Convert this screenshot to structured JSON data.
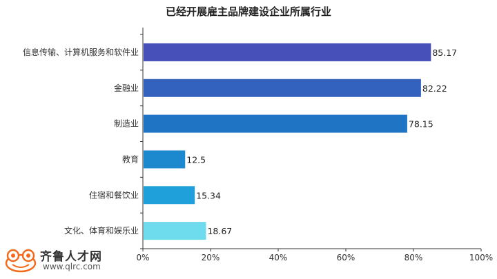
{
  "chart_data": {
    "type": "bar",
    "orientation": "horizontal",
    "title": "已经开展雇主品牌建设企业所属行业",
    "categories": [
      "信息传输、计算机服务和软件业",
      "金融业",
      "制造业",
      "教育",
      "住宿和餐饮业",
      "文化、体育和娱乐业"
    ],
    "values": [
      85.17,
      82.22,
      78.15,
      12.5,
      15.34,
      18.67
    ],
    "data_labels": [
      "85.17",
      "82.22",
      "78.15",
      "12.5",
      "15.34",
      "18.67"
    ],
    "colors": [
      "#4750B8",
      "#3362BE",
      "#1F74C4",
      "#1C89CE",
      "#1FA0DA",
      "#6FDCEE"
    ],
    "xlim": [
      0,
      100
    ],
    "xticks": [
      "0%",
      "20%",
      "40%",
      "60%",
      "80%",
      "100%"
    ],
    "xtick_values": [
      0,
      20,
      40,
      60,
      80,
      100
    ],
    "grid": false,
    "legend": "none"
  },
  "watermark": {
    "brand": "齐鲁人才网",
    "url": "www.qlrc.com"
  }
}
